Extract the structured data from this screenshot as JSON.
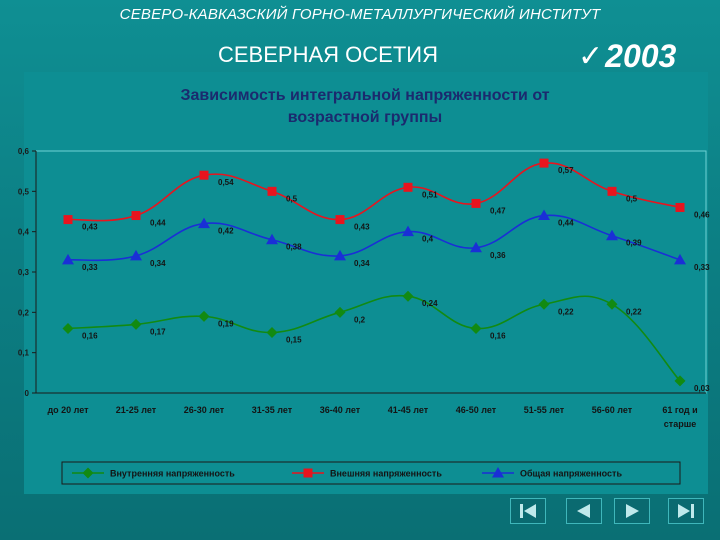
{
  "header": {
    "institute": "СЕВЕРО-КАВКАЗСКИЙ ГОРНО-МЕТАЛЛУРГИЧЕСКИЙ ИНСТИТУТ",
    "region": "СЕВЕРНАЯ ОСЕТИЯ",
    "year": "2003",
    "check_icon": "checkmark-icon"
  },
  "chart_data": {
    "type": "line",
    "title": "Зависимость интегральной напряженности от возрастной группы",
    "title_lines": [
      "Зависимость интегральной напряженности от",
      "возрастной группы"
    ],
    "categories": [
      [
        "до 20 лет"
      ],
      [
        "21-25 лет"
      ],
      [
        "26-30 лет"
      ],
      [
        "31-35 лет"
      ],
      [
        "36-40 лет"
      ],
      [
        "41-45 лет"
      ],
      [
        "46-50 лет"
      ],
      [
        "51-55 лет"
      ],
      [
        "56-60 лет"
      ],
      [
        "61 год и",
        "старше"
      ]
    ],
    "yticks": [
      "0",
      "0,1",
      "0,2",
      "0,3",
      "0,4",
      "0,5",
      "0,6"
    ],
    "ylim": [
      0,
      0.6
    ],
    "grid": false,
    "legend_position": "bottom",
    "series": [
      {
        "name": "Внутренняя напряженность",
        "color": "#128a12",
        "marker": "diamond",
        "values": [
          0.16,
          0.17,
          0.19,
          0.15,
          0.2,
          0.24,
          0.16,
          0.22,
          0.22,
          0.03
        ],
        "labels": [
          "0,16",
          "0,17",
          "0,19",
          "0,15",
          "0,2",
          "0,24",
          "0,16",
          "0,22",
          "0,22",
          "0,03"
        ]
      },
      {
        "name": "Внешняя напряженность",
        "color": "#e8141e",
        "marker": "square",
        "values": [
          0.43,
          0.44,
          0.54,
          0.5,
          0.43,
          0.51,
          0.47,
          0.57,
          0.5,
          0.46
        ],
        "labels": [
          "0,43",
          "0,44",
          "0,54",
          "0,5",
          "0,43",
          "0,51",
          "0,47",
          "0,57",
          "0,5",
          "0,46"
        ]
      },
      {
        "name": "Общая напряженность",
        "color": "#1a2fd6",
        "marker": "triangle",
        "values": [
          0.33,
          0.34,
          0.42,
          0.38,
          0.34,
          0.4,
          0.36,
          0.44,
          0.39,
          0.33
        ],
        "labels": [
          "0,33",
          "0,34",
          "0,42",
          "0,38",
          "0,34",
          "0,4",
          "0,36",
          "0,44",
          "0,39",
          "0,33"
        ]
      }
    ]
  },
  "nav": [
    {
      "name": "first-slide-button",
      "icon": "skip-to-start-icon"
    },
    {
      "name": "previous-slide-button",
      "icon": "arrow-left-icon"
    },
    {
      "name": "next-slide-button",
      "icon": "arrow-right-icon"
    },
    {
      "name": "last-slide-button",
      "icon": "skip-to-end-icon"
    }
  ]
}
